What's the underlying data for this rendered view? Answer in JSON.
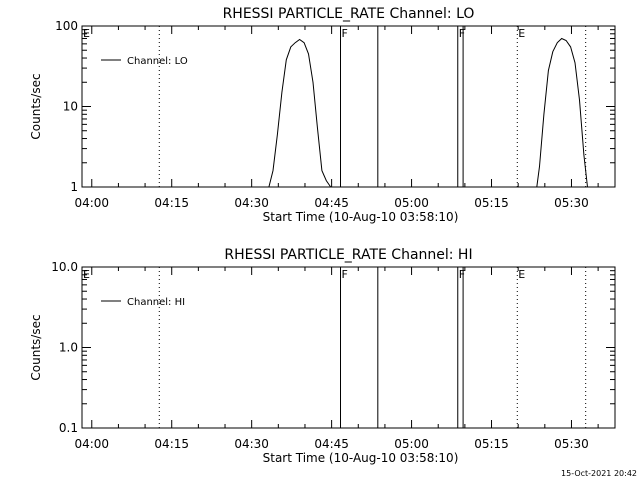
{
  "chart_data": [
    {
      "type": "line",
      "title": "RHESSI PARTICLE_RATE Channel: LO",
      "xlabel": "Start Time (10-Aug-10 03:58:10)",
      "ylabel": "Counts/sec",
      "yscale": "log",
      "xlim": [
        "03:58:10",
        "05:38:10"
      ],
      "ylim": [
        1,
        100
      ],
      "x_ticks": [
        "04:00",
        "04:15",
        "04:30",
        "04:45",
        "05:00",
        "05:15",
        "05:30"
      ],
      "y_ticks": [
        "1",
        "10",
        "100"
      ],
      "legend": {
        "position": "top-left",
        "entries": [
          "Channel: LO"
        ]
      },
      "grid": false,
      "series": [
        {
          "name": "Channel: LO",
          "segments": [
            {
              "x": [
                "04:33:14",
                "04:34:00",
                "04:34:50",
                "04:35:40",
                "04:36:30",
                "04:37:20",
                "04:38:10",
                "04:39:00",
                "04:39:50",
                "04:40:40",
                "04:41:30",
                "04:42:20",
                "04:43:10",
                "04:44:00",
                "04:44:50"
              ],
              "y": [
                1,
                1.6,
                4.5,
                15,
                38,
                55,
                62,
                68,
                62,
                45,
                20,
                5.5,
                1.6,
                1.2,
                1
              ]
            },
            {
              "x": [
                "05:23:30",
                "05:24:00",
                "05:24:50",
                "05:25:40",
                "05:26:30",
                "05:27:20",
                "05:28:10",
                "05:29:00",
                "05:29:50",
                "05:30:40",
                "05:31:30",
                "05:32:20",
                "05:33:00"
              ],
              "y": [
                1,
                1.8,
                8,
                28,
                48,
                62,
                70,
                66,
                55,
                35,
                12,
                2.5,
                1
              ]
            }
          ]
        }
      ],
      "annotations": [
        {
          "label": "E",
          "time": "03:58:10",
          "line": "none"
        },
        {
          "label": "",
          "time": "04:12:40",
          "line": "dotted"
        },
        {
          "label": "F",
          "time": "04:46:40",
          "line": "solid"
        },
        {
          "label": "",
          "time": "04:53:40",
          "line": "solid"
        },
        {
          "label": "F",
          "time": "05:08:40",
          "line": "solid"
        },
        {
          "label": "",
          "time": "05:09:40",
          "line": "solid"
        },
        {
          "label": "E",
          "time": "05:19:50",
          "line": "dotted"
        },
        {
          "label": "",
          "time": "05:32:40",
          "line": "dotted"
        }
      ]
    },
    {
      "type": "line",
      "title": "RHESSI PARTICLE_RATE Channel: HI",
      "xlabel": "Start Time (10-Aug-10 03:58:10)",
      "ylabel": "Counts/sec",
      "yscale": "log",
      "xlim": [
        "03:58:10",
        "05:38:10"
      ],
      "ylim": [
        0.1,
        10
      ],
      "x_ticks": [
        "04:00",
        "04:15",
        "04:30",
        "04:45",
        "05:00",
        "05:15",
        "05:30"
      ],
      "y_ticks": [
        "0.1",
        "1.0",
        "10.0"
      ],
      "legend": {
        "position": "top-left",
        "entries": [
          "Channel: HI"
        ]
      },
      "grid": false,
      "series": [
        {
          "name": "Channel: HI",
          "segments": []
        }
      ],
      "annotations": [
        {
          "label": "E",
          "time": "03:58:10",
          "line": "none"
        },
        {
          "label": "",
          "time": "04:12:40",
          "line": "dotted"
        },
        {
          "label": "F",
          "time": "04:46:40",
          "line": "solid"
        },
        {
          "label": "",
          "time": "04:53:40",
          "line": "solid"
        },
        {
          "label": "F",
          "time": "05:08:40",
          "line": "solid"
        },
        {
          "label": "",
          "time": "05:09:40",
          "line": "solid"
        },
        {
          "label": "E",
          "time": "05:19:50",
          "line": "dotted"
        },
        {
          "label": "",
          "time": "05:32:40",
          "line": "dotted"
        }
      ]
    }
  ],
  "footer": {
    "timestamp": "15-Oct-2021 20:42"
  }
}
